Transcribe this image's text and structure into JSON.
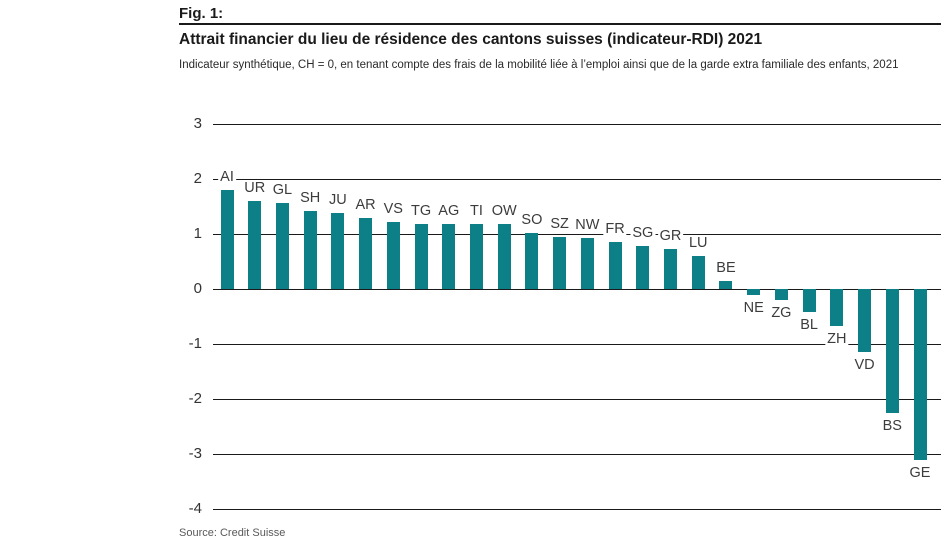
{
  "header": {
    "fig_label": "Fig. 1:",
    "title": "Attrait financier du lieu de résidence des cantons suisses (indicateur-RDI) 2021",
    "subtitle": "Indicateur synthétique, CH = 0, en tenant compte des frais de la mobilité liée à l’emploi ainsi que de la garde extra familiale des enfants, 2021"
  },
  "chart_data": {
    "type": "bar",
    "title": "Attrait financier du lieu de résidence des cantons suisses (indicateur-RDI) 2021",
    "subtitle": "Indicateur synthétique, CH = 0, en tenant compte des frais de la mobilité liée à l’emploi ainsi que de la garde extra familiale des enfants, 2021",
    "categories": [
      "AI",
      "UR",
      "GL",
      "SH",
      "JU",
      "AR",
      "VS",
      "TG",
      "AG",
      "TI",
      "OW",
      "SO",
      "SZ",
      "NW",
      "FR",
      "SG",
      "GR",
      "LU",
      "BE",
      "NE",
      "ZG",
      "BL",
      "ZH",
      "VD",
      "BS",
      "GE"
    ],
    "values": [
      1.8,
      1.6,
      1.56,
      1.41,
      1.38,
      1.29,
      1.22,
      1.19,
      1.19,
      1.18,
      1.18,
      1.01,
      0.95,
      0.93,
      0.85,
      0.78,
      0.72,
      0.6,
      0.15,
      -0.11,
      -0.2,
      -0.42,
      -0.68,
      -1.14,
      -2.26,
      -3.1
    ],
    "xlabel": "",
    "ylabel": "",
    "ylim": [
      -4,
      3
    ],
    "yticks": [
      3,
      2,
      1,
      0,
      -1,
      -2,
      -3,
      -4
    ],
    "grid": "horizontal",
    "legend": "none",
    "bar_color": "#0D7F87",
    "baseline": 0
  },
  "footer": {
    "source": "Source: Credit Suisse"
  }
}
